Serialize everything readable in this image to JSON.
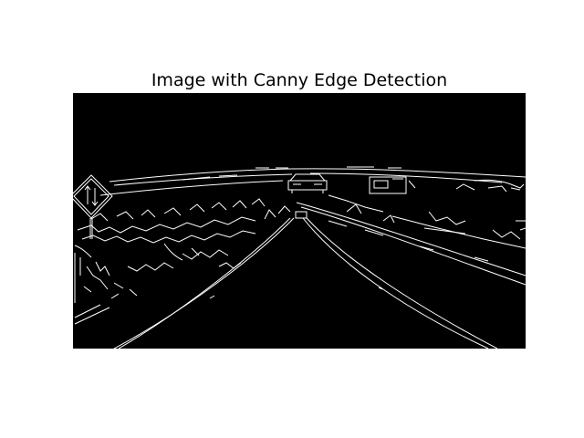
{
  "figure": {
    "title": "Image with Canny Edge Detection",
    "background_color": "#ffffff",
    "image_background_color": "#000000",
    "edge_color": "#ffffff"
  }
}
